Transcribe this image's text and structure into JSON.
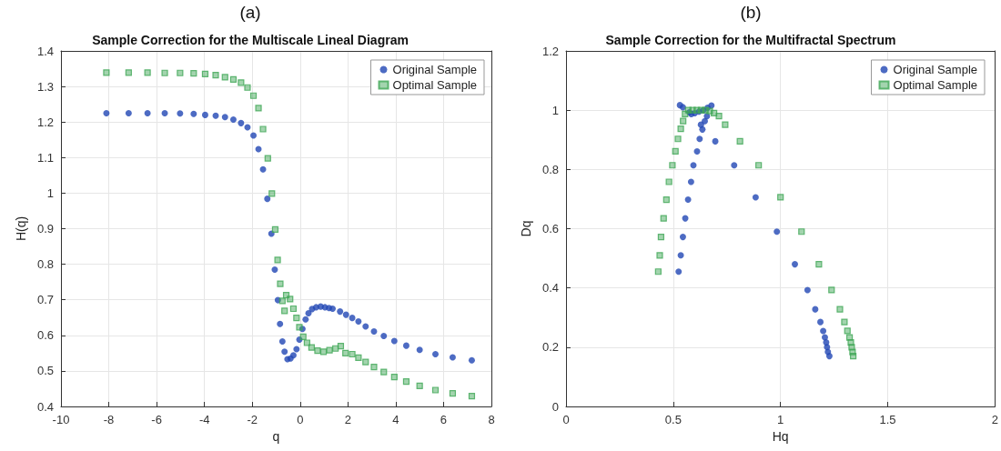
{
  "chart_data": [
    {
      "type": "scatter",
      "title": "Sample Correction for the Multiscale Lineal Diagram",
      "annotations": [
        "(a)"
      ],
      "xlabel": "q",
      "ylabel": "H(q)",
      "xlim": [
        -10,
        8
      ],
      "xticks": [
        -10,
        -8,
        -6,
        -4,
        -2,
        0,
        2,
        4,
        6,
        8
      ],
      "ylim": [
        0.4,
        1.4
      ],
      "yticks": [
        0.4,
        0.5,
        0.6,
        0.7,
        0.8,
        0.9,
        1,
        1.1,
        1.2,
        1.3,
        1.4
      ],
      "grid": true,
      "legend": "top right",
      "series": [
        {
          "name": "Original Sample",
          "color": "#2046b4",
          "marker": "circle",
          "x": [
            -8.1,
            -7.17,
            -6.38,
            -5.66,
            -5.02,
            -4.45,
            -3.97,
            -3.53,
            -3.14,
            -2.79,
            -2.47,
            -2.2,
            -1.95,
            -1.74,
            -1.55,
            -1.37,
            -1.2,
            -1.06,
            -0.93,
            -0.84,
            -0.74,
            -0.65,
            -0.53,
            -0.4,
            -0.28,
            -0.15,
            -0.03,
            0.1,
            0.23,
            0.35,
            0.5,
            0.67,
            0.86,
            1.04,
            1.21,
            1.36,
            1.67,
            1.92,
            2.18,
            2.44,
            2.74,
            3.09,
            3.5,
            3.94,
            4.44,
            5.0,
            5.66,
            6.38,
            7.18
          ],
          "values": [
            1.225,
            1.225,
            1.225,
            1.225,
            1.224,
            1.223,
            1.22,
            1.218,
            1.214,
            1.207,
            1.197,
            1.185,
            1.162,
            1.124,
            1.067,
            0.984,
            0.886,
            0.785,
            0.699,
            0.632,
            0.583,
            0.554,
            0.533,
            0.535,
            0.544,
            0.561,
            0.588,
            0.618,
            0.645,
            0.662,
            0.674,
            0.679,
            0.681,
            0.679,
            0.677,
            0.675,
            0.667,
            0.658,
            0.649,
            0.639,
            0.625,
            0.611,
            0.598,
            0.584,
            0.571,
            0.559,
            0.547,
            0.538,
            0.53
          ]
        },
        {
          "name": "Optimal Sample",
          "color": "#3ea655",
          "marker": "square",
          "x": [
            -8.1,
            -7.17,
            -6.38,
            -5.66,
            -5.02,
            -4.45,
            -3.97,
            -3.53,
            -3.14,
            -2.79,
            -2.47,
            -2.2,
            -1.95,
            -1.74,
            -1.55,
            -1.35,
            -1.18,
            -1.04,
            -0.94,
            -0.83,
            -0.74,
            -0.65,
            -0.58,
            -0.42,
            -0.28,
            -0.15,
            -0.03,
            0.13,
            0.29,
            0.48,
            0.73,
            0.98,
            1.23,
            1.48,
            1.7,
            1.9,
            2.18,
            2.44,
            2.74,
            3.09,
            3.5,
            3.94,
            4.44,
            5.0,
            5.66,
            6.38,
            7.18
          ],
          "values": [
            1.339,
            1.339,
            1.339,
            1.338,
            1.338,
            1.337,
            1.335,
            1.332,
            1.326,
            1.32,
            1.311,
            1.297,
            1.274,
            1.239,
            1.18,
            1.098,
            0.999,
            0.898,
            0.812,
            0.745,
            0.697,
            0.669,
            0.713,
            0.702,
            0.675,
            0.649,
            0.623,
            0.596,
            0.579,
            0.566,
            0.557,
            0.554,
            0.558,
            0.563,
            0.57,
            0.55,
            0.547,
            0.537,
            0.525,
            0.511,
            0.497,
            0.483,
            0.47,
            0.458,
            0.446,
            0.437,
            0.429
          ]
        }
      ]
    },
    {
      "type": "scatter",
      "title": "Sample Correction for the Multifractal Spectrum",
      "annotations": [
        "(b)"
      ],
      "xlabel": "Hq",
      "ylabel": "Dq",
      "xlim": [
        0,
        2
      ],
      "xticks": [
        0,
        0.5,
        1,
        1.5,
        2
      ],
      "ylim": [
        0,
        1.2
      ],
      "yticks": [
        0,
        0.2,
        0.4,
        0.6,
        0.8,
        1,
        1.2
      ],
      "grid": true,
      "legend": "top right",
      "series": [
        {
          "name": "Original Sample",
          "color": "#2046b4",
          "marker": "circle",
          "x": [
            0.525,
            0.535,
            0.545,
            0.556,
            0.569,
            0.583,
            0.594,
            0.611,
            0.623,
            0.636,
            0.629,
            0.647,
            0.657,
            0.531,
            0.545,
            0.56,
            0.575,
            0.584,
            0.6,
            0.62,
            0.64,
            0.66,
            0.678,
            0.696,
            0.784,
            0.884,
            0.983,
            1.067,
            1.126,
            1.162,
            1.186,
            1.199,
            1.207,
            1.213,
            1.217,
            1.221,
            1.228
          ],
          "values": [
            0.455,
            0.51,
            0.572,
            0.635,
            0.698,
            0.758,
            0.814,
            0.861,
            0.903,
            0.935,
            0.951,
            0.963,
            0.98,
            1.017,
            1.01,
            null,
            0.993,
            0.987,
            0.99,
            0.995,
            1.0,
            1.008,
            1.016,
            0.895,
            0.814,
            0.706,
            0.59,
            0.48,
            0.393,
            0.328,
            0.285,
            0.255,
            0.233,
            0.216,
            0.2,
            0.184,
            0.17
          ]
        },
        {
          "name": "Optimal Sample",
          "color": "#3ea655",
          "marker": "square",
          "x": [
            0.43,
            0.437,
            0.443,
            0.455,
            0.468,
            0.48,
            0.496,
            0.51,
            0.522,
            0.535,
            0.546,
            0.555,
            0.566,
            0.57,
            0.59,
            0.61,
            0.63,
            0.65,
            0.67,
            0.69,
            0.713,
            0.742,
            0.811,
            0.898,
            1.0,
            1.098,
            1.179,
            1.238,
            1.277,
            1.298,
            1.312,
            1.322,
            1.328,
            1.332,
            1.336,
            1.339
          ],
          "values": [
            0.455,
            0.51,
            0.572,
            0.635,
            0.698,
            0.758,
            0.814,
            0.861,
            0.903,
            0.937,
            0.963,
            0.987,
            null,
            1.0,
            1.0,
            1.0,
            1.0,
            1.0,
            0.997,
            0.99,
            0.98,
            0.951,
            0.895,
            0.814,
            0.706,
            0.59,
            0.48,
            0.393,
            0.328,
            0.285,
            0.255,
            0.233,
            0.216,
            0.2,
            0.184,
            0.17
          ]
        }
      ]
    }
  ]
}
